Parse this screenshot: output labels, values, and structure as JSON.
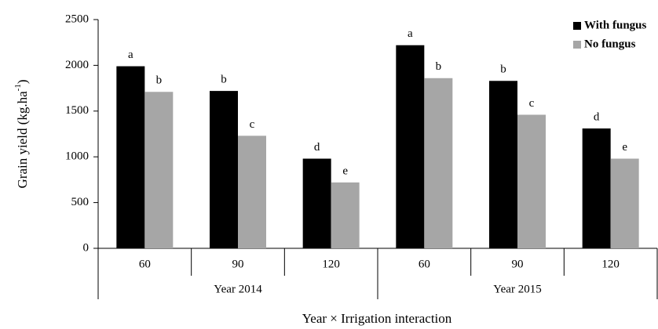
{
  "chart_data": {
    "type": "bar",
    "x_label": "Year × Irrigation interaction",
    "y_label": {
      "text": "Grain yield (kg.ha",
      "superscript": "-1",
      "suffix": ")"
    },
    "categories": [
      "60",
      "90",
      "120",
      "60",
      "90",
      "120"
    ],
    "group_labels": [
      "Year 2014",
      "Year 2015"
    ],
    "series": [
      {
        "name": "With fungus",
        "color": "#000000",
        "values": [
          1990,
          1720,
          980,
          2220,
          1830,
          1310
        ],
        "annotations": [
          "a",
          "b",
          "d",
          "a",
          "b",
          "d"
        ]
      },
      {
        "name": "No fungus",
        "color": "#a6a6a6",
        "values": [
          1710,
          1230,
          720,
          1860,
          1460,
          980
        ],
        "annotations": [
          "b",
          "c",
          "e",
          "b",
          "c",
          "e"
        ]
      }
    ],
    "ylim": [
      0,
      2500
    ],
    "yticks": [
      0,
      500,
      1000,
      1500,
      2000,
      2500
    ],
    "grid": false,
    "legend": "top-right"
  }
}
